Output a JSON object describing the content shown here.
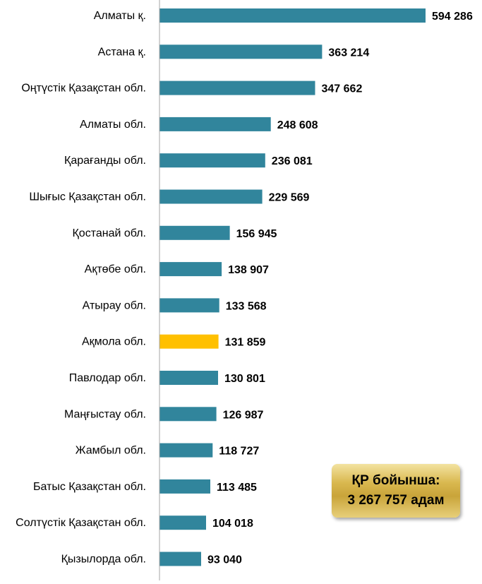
{
  "chart_data": {
    "type": "bar",
    "orientation": "horizontal",
    "categories": [
      "Алматы қ.",
      "Астана қ.",
      "Оңтүстік Қазақстан обл.",
      "Алматы обл.",
      "Қарағанды обл.",
      "Шығыс Қазақстан  обл.",
      "Қостанай обл.",
      "Ақтөбе обл.",
      "Атырау обл.",
      "Ақмола обл.",
      "Павлодар обл.",
      "Маңғыстау обл.",
      "Жамбыл обл.",
      "Батыс Қазақстан  обл.",
      "Солтүстік Қазақстан  обл.",
      "Қызылорда обл."
    ],
    "values": [
      594286,
      363214,
      347662,
      248608,
      236081,
      229569,
      156945,
      138907,
      133568,
      131859,
      130801,
      126987,
      118727,
      113485,
      104018,
      93040
    ],
    "value_labels": [
      "594 286",
      "363 214",
      "347 662",
      "248 608",
      "236 081",
      "229 569",
      "156 945",
      "138 907",
      "133 568",
      "131 859",
      "130 801",
      "126 987",
      "118 727",
      "113 485",
      "104 018",
      "93 040"
    ],
    "highlight_category": "Ақмола обл.",
    "xlim": [
      0,
      594286
    ],
    "grid": false,
    "colors": {
      "bar": "#31859c",
      "highlight": "#ffc000",
      "axis": "#a6a6a6"
    }
  },
  "summary_box": {
    "line1": "ҚР бойынша:",
    "line2": "3 267 757 адам"
  }
}
